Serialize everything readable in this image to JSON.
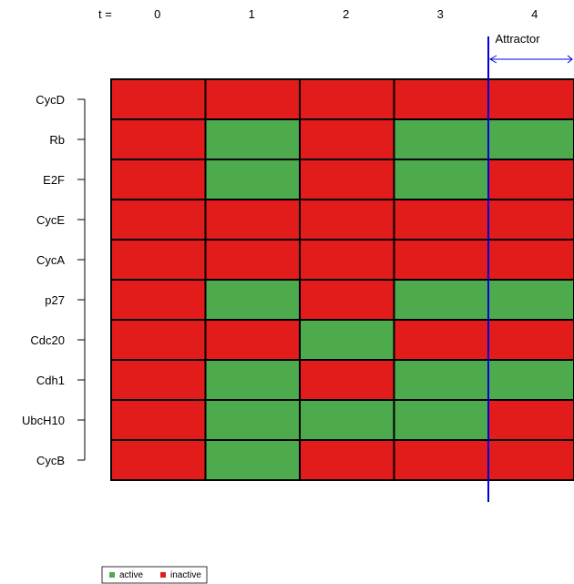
{
  "chart_data": {
    "type": "heatmap",
    "time_label": "t =",
    "time_steps": [
      "0",
      "1",
      "2",
      "3",
      "4"
    ],
    "genes": [
      "CycD",
      "Rb",
      "E2F",
      "CycE",
      "CycA",
      "p27",
      "Cdc20",
      "Cdh1",
      "UbcH10",
      "CycB"
    ],
    "states": [
      [
        0,
        0,
        0,
        0,
        0
      ],
      [
        0,
        1,
        0,
        1,
        1
      ],
      [
        0,
        1,
        0,
        1,
        0
      ],
      [
        0,
        0,
        0,
        0,
        0
      ],
      [
        0,
        0,
        0,
        0,
        0
      ],
      [
        0,
        1,
        0,
        1,
        1
      ],
      [
        0,
        0,
        1,
        0,
        0
      ],
      [
        0,
        1,
        0,
        1,
        1
      ],
      [
        0,
        1,
        1,
        1,
        0
      ],
      [
        0,
        1,
        0,
        0,
        0
      ]
    ],
    "attractor_label": "Attractor",
    "attractor_start_step": 4,
    "legend": [
      {
        "label": "active",
        "value": 1
      },
      {
        "label": "inactive",
        "value": 0
      }
    ],
    "colors": {
      "active": "#4daa4d",
      "inactive": "#e21b1b",
      "attractor": "#0000dd",
      "grid": "#000000"
    }
  }
}
